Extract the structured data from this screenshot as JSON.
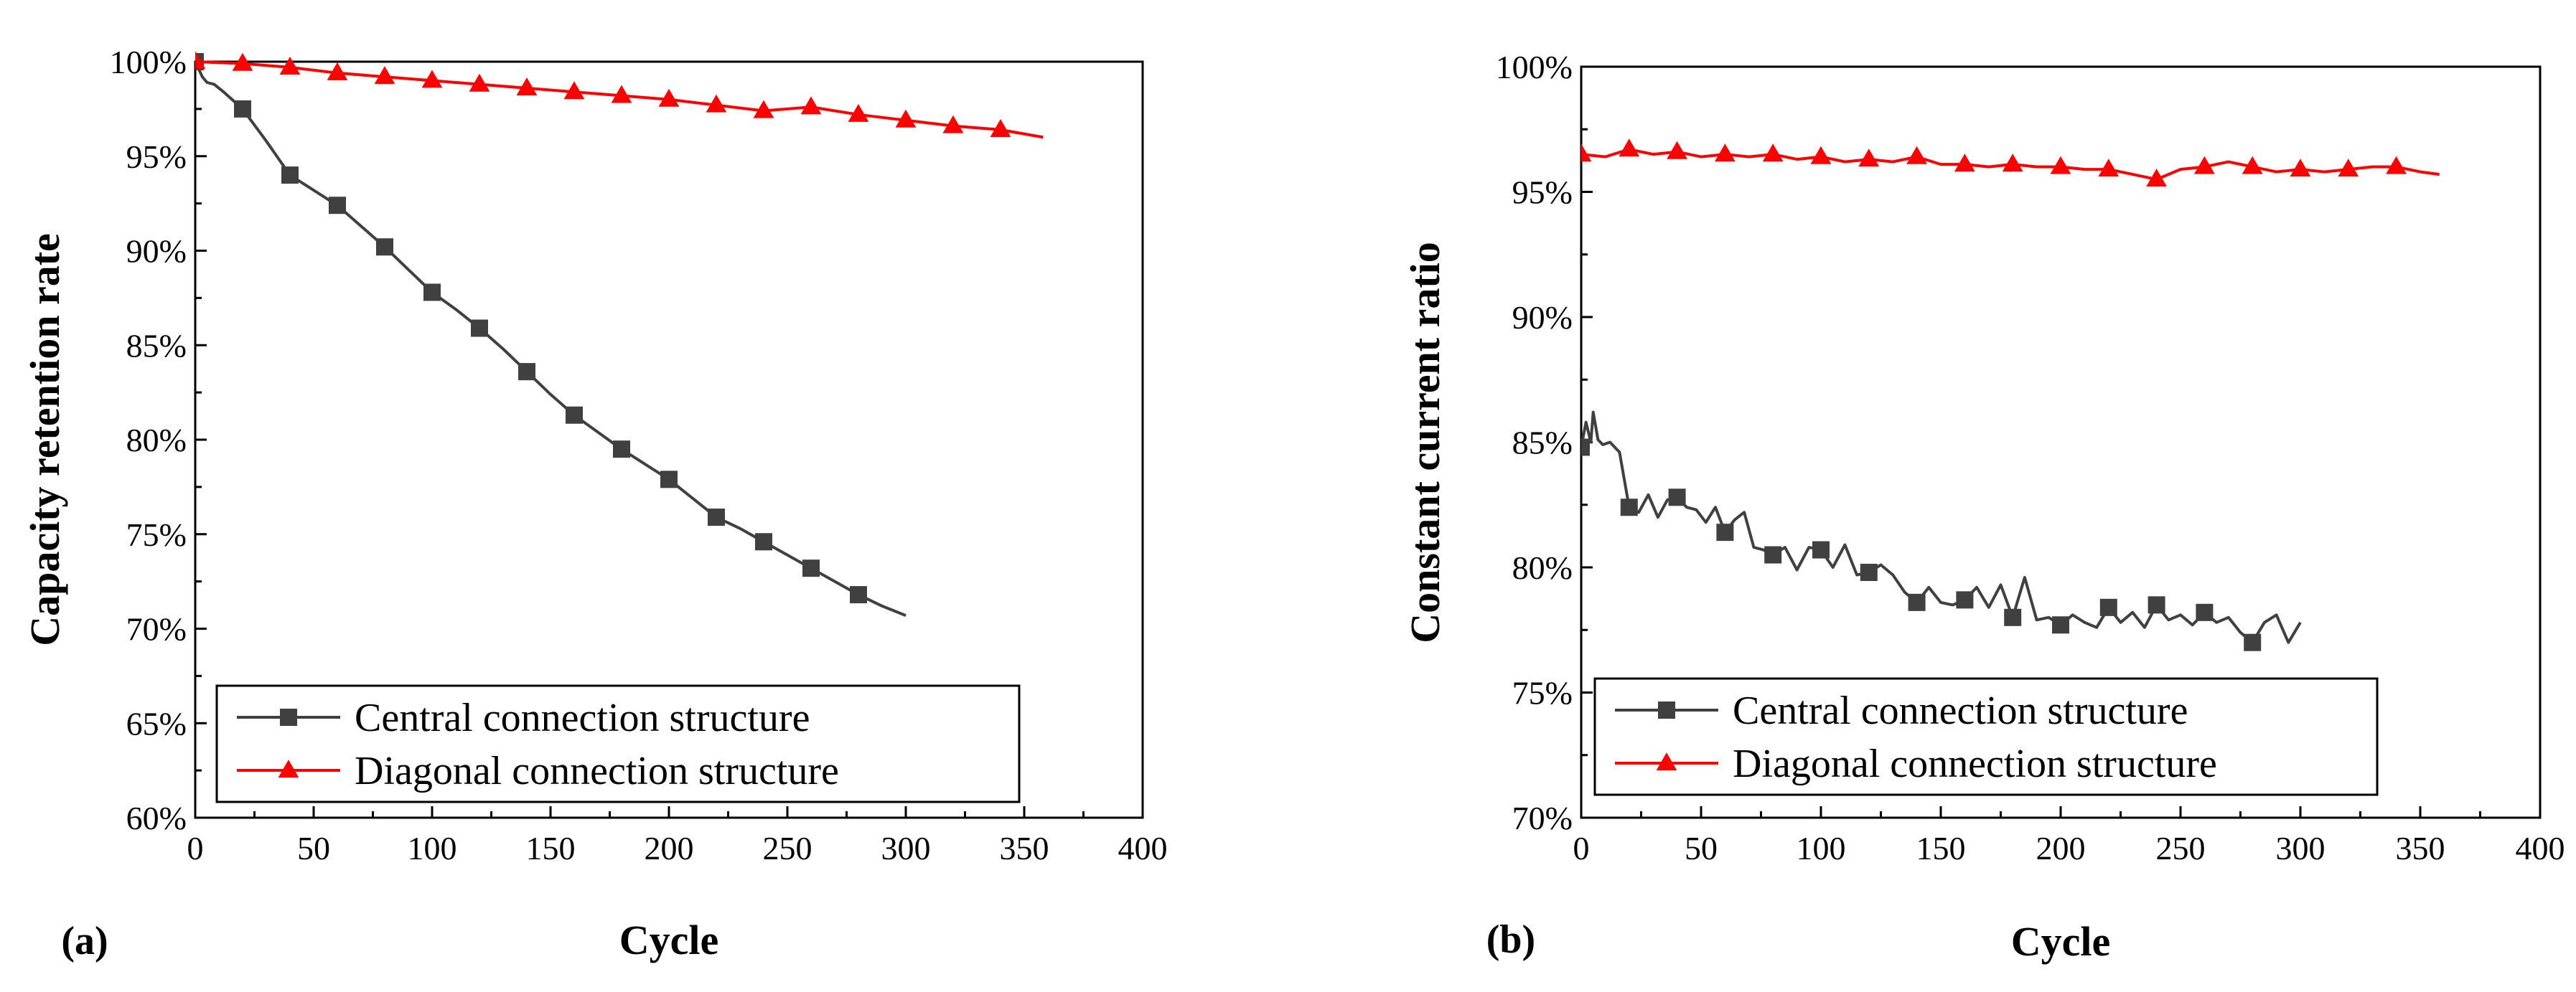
{
  "chart_data": [
    {
      "type": "line",
      "panel_label": "(a)",
      "xlabel": "Cycle",
      "ylabel": "Capacity retention rate",
      "xlim": [
        0,
        400
      ],
      "ylim": [
        60,
        100
      ],
      "x_ticks": [
        "0",
        "50",
        "100",
        "150",
        "200",
        "250",
        "300",
        "350",
        "400"
      ],
      "y_ticks": [
        "60%",
        "65%",
        "70%",
        "75%",
        "80%",
        "85%",
        "90%",
        "95%",
        "100%"
      ],
      "legend_position": "bottom-left",
      "series": [
        {
          "name": "Central connection structure",
          "color": "#404040",
          "marker": "square",
          "x": [
            0,
            3,
            5,
            8,
            12,
            20,
            30,
            40,
            50,
            60,
            70,
            80,
            90,
            100,
            110,
            120,
            130,
            140,
            150,
            160,
            170,
            180,
            190,
            200,
            210,
            220,
            230,
            240,
            250,
            260,
            270,
            280,
            290,
            300
          ],
          "y": [
            100,
            99.2,
            98.9,
            98.8,
            98.4,
            97.5,
            95.8,
            94.0,
            93.2,
            92.4,
            91.3,
            90.2,
            89.0,
            87.8,
            86.9,
            85.9,
            84.8,
            83.6,
            82.4,
            81.3,
            80.4,
            79.5,
            78.7,
            77.9,
            76.9,
            75.9,
            75.3,
            74.6,
            73.9,
            73.2,
            72.5,
            71.8,
            71.2,
            70.7
          ],
          "marker_x": [
            0,
            20,
            40,
            60,
            80,
            100,
            120,
            140,
            160,
            180,
            200,
            220,
            240,
            260,
            280
          ]
        },
        {
          "name": "Diagonal connection structure",
          "color": "#ff0000",
          "marker": "triangle",
          "x": [
            0,
            20,
            40,
            60,
            80,
            100,
            120,
            140,
            160,
            180,
            200,
            220,
            240,
            260,
            280,
            300,
            320,
            340,
            358
          ],
          "y": [
            100,
            99.9,
            99.7,
            99.4,
            99.2,
            99.0,
            98.8,
            98.6,
            98.4,
            98.2,
            98.0,
            97.7,
            97.4,
            97.6,
            97.2,
            96.9,
            96.6,
            96.4,
            96.0
          ],
          "marker_x": [
            0,
            20,
            40,
            60,
            80,
            100,
            120,
            140,
            160,
            180,
            200,
            220,
            240,
            260,
            280,
            300,
            320,
            340
          ]
        }
      ]
    },
    {
      "type": "line",
      "panel_label": "(b)",
      "xlabel": "Cycle",
      "ylabel": "Constant current ratio",
      "xlim": [
        0,
        400
      ],
      "ylim": [
        70,
        100
      ],
      "x_ticks": [
        "0",
        "50",
        "100",
        "150",
        "200",
        "250",
        "300",
        "350",
        "400"
      ],
      "y_ticks": [
        "70%",
        "75%",
        "80%",
        "85%",
        "90%",
        "95%",
        "100%"
      ],
      "legend_position": "bottom-left",
      "series": [
        {
          "name": "Central connection structure",
          "color": "#404040",
          "marker": "square",
          "x": [
            0,
            2,
            4,
            5,
            7,
            9,
            12,
            16,
            20,
            24,
            28,
            32,
            36,
            40,
            44,
            48,
            52,
            56,
            60,
            64,
            68,
            72,
            76,
            80,
            85,
            90,
            95,
            100,
            105,
            110,
            115,
            120,
            125,
            130,
            135,
            140,
            145,
            150,
            155,
            160,
            165,
            170,
            175,
            180,
            185,
            190,
            195,
            200,
            205,
            210,
            215,
            220,
            225,
            230,
            235,
            240,
            245,
            250,
            255,
            260,
            265,
            270,
            275,
            280,
            285,
            290,
            295,
            300
          ],
          "y": [
            84.8,
            85.8,
            85.0,
            86.2,
            85.1,
            84.9,
            85.0,
            84.6,
            82.4,
            82.2,
            82.9,
            82.0,
            82.7,
            82.8,
            82.4,
            82.3,
            81.8,
            82.4,
            81.4,
            81.9,
            82.2,
            80.8,
            80.7,
            80.5,
            80.8,
            79.9,
            80.8,
            80.7,
            80.0,
            80.9,
            79.7,
            79.8,
            80.1,
            79.7,
            79.0,
            78.6,
            79.2,
            78.6,
            78.5,
            78.7,
            79.2,
            78.4,
            79.3,
            78.0,
            79.6,
            77.9,
            78.0,
            77.7,
            78.1,
            77.8,
            77.6,
            78.4,
            77.8,
            78.2,
            77.6,
            78.5,
            77.9,
            78.1,
            77.7,
            78.2,
            77.8,
            78.0,
            77.4,
            77.0,
            77.8,
            78.1,
            77.0,
            77.8
          ],
          "marker_x": [
            0,
            20,
            40,
            60,
            80,
            100,
            120,
            140,
            160,
            180,
            200,
            220,
            240,
            260,
            280
          ]
        },
        {
          "name": "Diagonal connection structure",
          "color": "#ff0000",
          "marker": "triangle",
          "x": [
            0,
            10,
            20,
            30,
            40,
            50,
            60,
            70,
            80,
            90,
            100,
            110,
            120,
            130,
            140,
            150,
            160,
            170,
            180,
            190,
            200,
            210,
            220,
            230,
            240,
            250,
            260,
            270,
            280,
            290,
            300,
            310,
            320,
            330,
            340,
            350,
            358
          ],
          "y": [
            96.5,
            96.4,
            96.7,
            96.5,
            96.6,
            96.4,
            96.5,
            96.4,
            96.5,
            96.3,
            96.4,
            96.2,
            96.3,
            96.2,
            96.4,
            96.1,
            96.1,
            96.0,
            96.1,
            96.0,
            96.0,
            95.9,
            95.9,
            95.7,
            95.5,
            95.9,
            96.0,
            96.2,
            96.0,
            95.8,
            95.9,
            95.8,
            95.9,
            96.0,
            96.0,
            95.8,
            95.7
          ],
          "marker_x": [
            0,
            20,
            40,
            60,
            80,
            100,
            120,
            140,
            160,
            180,
            200,
            220,
            240,
            260,
            280,
            300,
            320,
            340
          ]
        }
      ]
    }
  ]
}
